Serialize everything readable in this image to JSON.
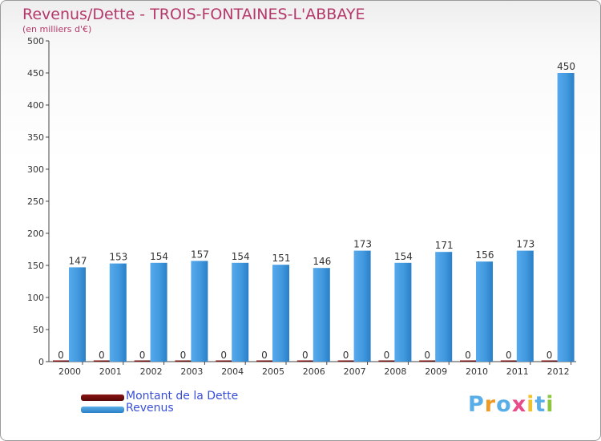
{
  "chart_data": {
    "type": "bar",
    "title": "Revenus/Dette - TROIS-FONTAINES-L'ABBAYE",
    "subtitle": "(en milliers d'€)",
    "xlabel": "",
    "ylabel": "",
    "ylim": [
      0,
      500
    ],
    "yticks": [
      "0",
      "50",
      "100",
      "150",
      "200",
      "250",
      "300",
      "350",
      "400",
      "450",
      "500"
    ],
    "categories": [
      "2000",
      "2001",
      "2002",
      "2003",
      "2004",
      "2005",
      "2006",
      "2007",
      "2008",
      "2009",
      "2010",
      "2011",
      "2012"
    ],
    "series": [
      {
        "name": "Montant de la Dette",
        "color": "#6b0b0b",
        "values": [
          0,
          0,
          0,
          0,
          0,
          0,
          0,
          0,
          0,
          0,
          0,
          0,
          0
        ]
      },
      {
        "name": "Revenus",
        "color": "#3b93d8",
        "values": [
          147,
          153,
          154,
          157,
          154,
          151,
          146,
          173,
          154,
          171,
          156,
          173,
          450
        ]
      }
    ],
    "grid": false,
    "legend": "bottom-left"
  },
  "logo": {
    "text": "Proxiti",
    "colors": [
      "#5aaee8",
      "#f09a26",
      "#5aaee8",
      "#e84b8a",
      "#f2c12e",
      "#5aaee8",
      "#8cc63f"
    ]
  }
}
